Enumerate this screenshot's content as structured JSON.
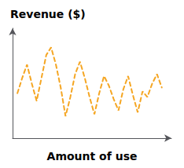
{
  "chart_data": {
    "type": "line",
    "title": "Revenue ($)",
    "xlabel": "Amount of use",
    "x": [
      0,
      1,
      2,
      3,
      4,
      5,
      6,
      7,
      8,
      9,
      10,
      11,
      12,
      13,
      14,
      15,
      16,
      17,
      18,
      19,
      20,
      21,
      22,
      23,
      24,
      25,
      26,
      27,
      28,
      29,
      30
    ],
    "values": [
      0.42,
      0.58,
      0.72,
      0.52,
      0.34,
      0.58,
      0.82,
      0.9,
      0.72,
      0.48,
      0.18,
      0.38,
      0.62,
      0.75,
      0.58,
      0.38,
      0.2,
      0.42,
      0.6,
      0.5,
      0.36,
      0.24,
      0.46,
      0.6,
      0.4,
      0.22,
      0.44,
      0.38,
      0.52,
      0.62,
      0.48
    ],
    "color": "#F5A623",
    "line_style": "dashed",
    "xlim": [
      -1,
      32
    ],
    "ylim": [
      -0.05,
      1.1
    ],
    "tick_labels": false,
    "grid": false
  }
}
